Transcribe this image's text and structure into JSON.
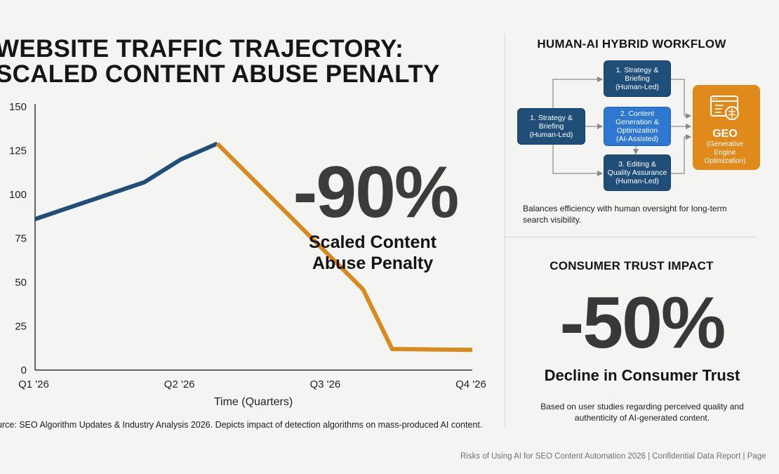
{
  "title": {
    "line1": "WEBSITE TRAFFIC TRAJECTORY:",
    "line2": "SCALED CONTENT ABUSE PENALTY"
  },
  "chart_data": {
    "type": "line",
    "title": "WEBSITE TRAFFIC TRAJECTORY: SCALED CONTENT ABUSE PENALTY",
    "xlabel": "Time (Quarters)",
    "ylabel": "",
    "x_ticks": [
      "Q1 '26",
      "Q2 '26",
      "Q3 '26",
      "Q4 '26"
    ],
    "y_ticks": [
      0,
      25,
      50,
      75,
      100,
      125,
      150
    ],
    "ylim": [
      0,
      150
    ],
    "xlim": [
      0,
      3
    ],
    "grid": false,
    "series": [
      {
        "color": "#1f4e79",
        "points": [
          [
            0,
            86
          ],
          [
            0.5,
            100
          ],
          [
            0.75,
            107
          ],
          [
            1.0,
            120
          ],
          [
            1.25,
            129
          ]
        ]
      },
      {
        "color": "#d98a1c",
        "points": [
          [
            1.25,
            129
          ],
          [
            2.25,
            46
          ],
          [
            2.45,
            12
          ],
          [
            3.0,
            11.5
          ]
        ]
      }
    ],
    "annotations": [
      {
        "value": "-90%",
        "label": "Scaled Content\nAbuse Penalty"
      }
    ]
  },
  "source_note": "urce: SEO Algorithm Updates & Industry Analysis 2026. Depicts impact of detection algorithms on mass-produced AI content.",
  "workflow": {
    "heading": "HUMAN-AI HYBRID WORKFLOW",
    "steps": {
      "input": "1. Strategy &\nBriefing\n(Human-Led)",
      "top": "1. Strategy &\nBriefing\n(Human-Led)",
      "middle": "2. Content\nGeneration &\nOptimization\n(AI-Assisted)",
      "bottom": "3. Editing &\nQuality Assurance\n(Human-Led)"
    },
    "geo": {
      "title": "GEO",
      "subtitle": "(Generative\nEngine\nOptimization)",
      "icon": "ai-brain-window-icon"
    },
    "note": "Balances efficiency with human oversight for long-term search visibility.",
    "colors": {
      "dark": "#1f4e79",
      "mid": "#2e78d2",
      "geo": "#e08a1c"
    }
  },
  "consumer_trust": {
    "heading": "CONSUMER TRUST IMPACT",
    "value": "-50%",
    "caption": "Decline in Consumer Trust",
    "note": "Based on user studies regarding perceived quality and authenticity of AI-generated content."
  },
  "footer": "Risks of Using AI for SEO Content Automation 2026 | Confidential Data Report | Page"
}
